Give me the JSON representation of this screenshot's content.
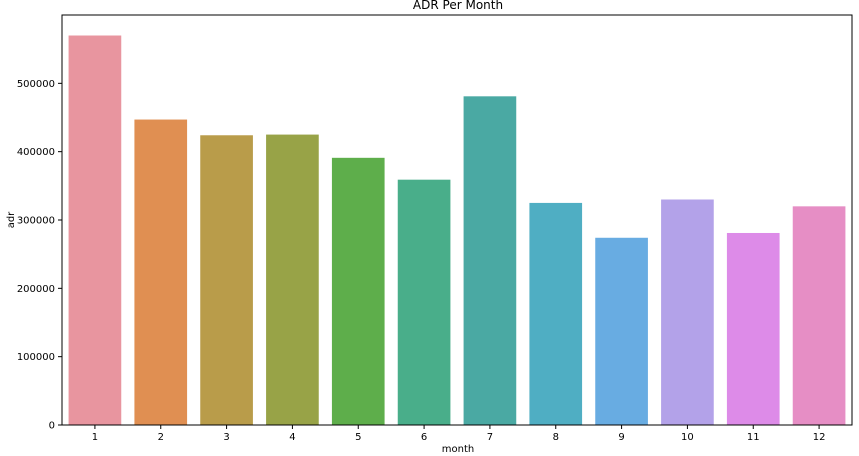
{
  "chart_data": {
    "type": "bar",
    "title": "ADR Per Month",
    "xlabel": "month",
    "ylabel": "adr",
    "categories": [
      "1",
      "2",
      "3",
      "4",
      "5",
      "6",
      "7",
      "8",
      "9",
      "10",
      "11",
      "12"
    ],
    "values": [
      570000,
      447000,
      424000,
      425000,
      391000,
      359000,
      481000,
      325000,
      274000,
      330000,
      281000,
      320000
    ],
    "colors": [
      "#e8959f",
      "#e08f52",
      "#b99c4a",
      "#98a347",
      "#5eae4b",
      "#49ae8a",
      "#4aa9a3",
      "#4faec3",
      "#68ace2",
      "#b3a2e9",
      "#dd8be8",
      "#e68ec5"
    ],
    "ylim": [
      0,
      600000
    ],
    "yticks": [
      0,
      100000,
      200000,
      300000,
      400000,
      500000
    ],
    "ytick_labels": [
      "0",
      "100000",
      "200000",
      "300000",
      "400000",
      "500000"
    ],
    "grid": false,
    "legend": "none"
  }
}
